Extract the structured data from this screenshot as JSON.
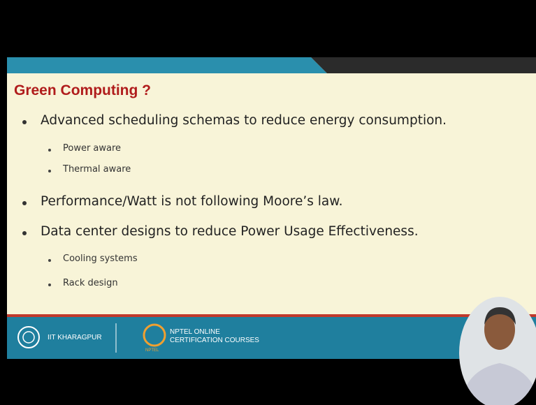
{
  "slide": {
    "title": "Green Computing ?",
    "bullets": [
      {
        "text": "Advanced scheduling schemas to reduce energy consumption.",
        "sub": [
          "Power aware",
          "Thermal aware"
        ]
      },
      {
        "text": "Performance/Watt is not following Moore’s law.",
        "sub": []
      },
      {
        "text": "Data center designs to reduce Power Usage Effectiveness.",
        "sub": [
          "Cooling systems",
          "Rack design"
        ]
      }
    ]
  },
  "footer": {
    "institute": "IIT KHARAGPUR",
    "course_line1": "NPTEL ONLINE",
    "course_line2": "CERTIFICATION COURSES",
    "logo_text": "NPTEL"
  }
}
